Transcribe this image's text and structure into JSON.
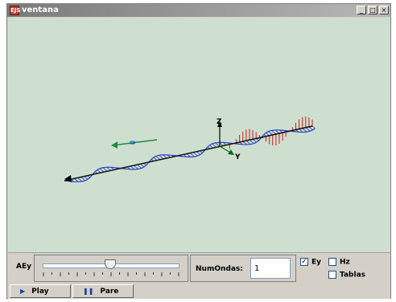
{
  "window": {
    "title": "ventana",
    "icon_text": "EJS",
    "minimize": "_",
    "maximize": "□",
    "close": "×"
  },
  "scene": {
    "axis_labels": {
      "z": "Z",
      "y": "Y"
    },
    "colors": {
      "background": "#cde0d0",
      "e_field": "#2a3fcc",
      "h_field": "#d01818",
      "propagation_arrow": "#1f8a3a",
      "axis": "#000000"
    }
  },
  "controls": {
    "aey_label": "AEy",
    "aey_slider_value": 0.5,
    "numondas_label": "NumOndas:",
    "numondas_value": "1",
    "checkboxes": [
      {
        "label": "Ey",
        "checked": true
      },
      {
        "label": "Hz",
        "checked": false
      },
      {
        "label": "Tablas",
        "checked": false
      }
    ]
  },
  "buttons": {
    "play": {
      "label": "Play",
      "icon": "play-icon"
    },
    "pause": {
      "label": "Pare",
      "icon": "pause-icon"
    }
  }
}
